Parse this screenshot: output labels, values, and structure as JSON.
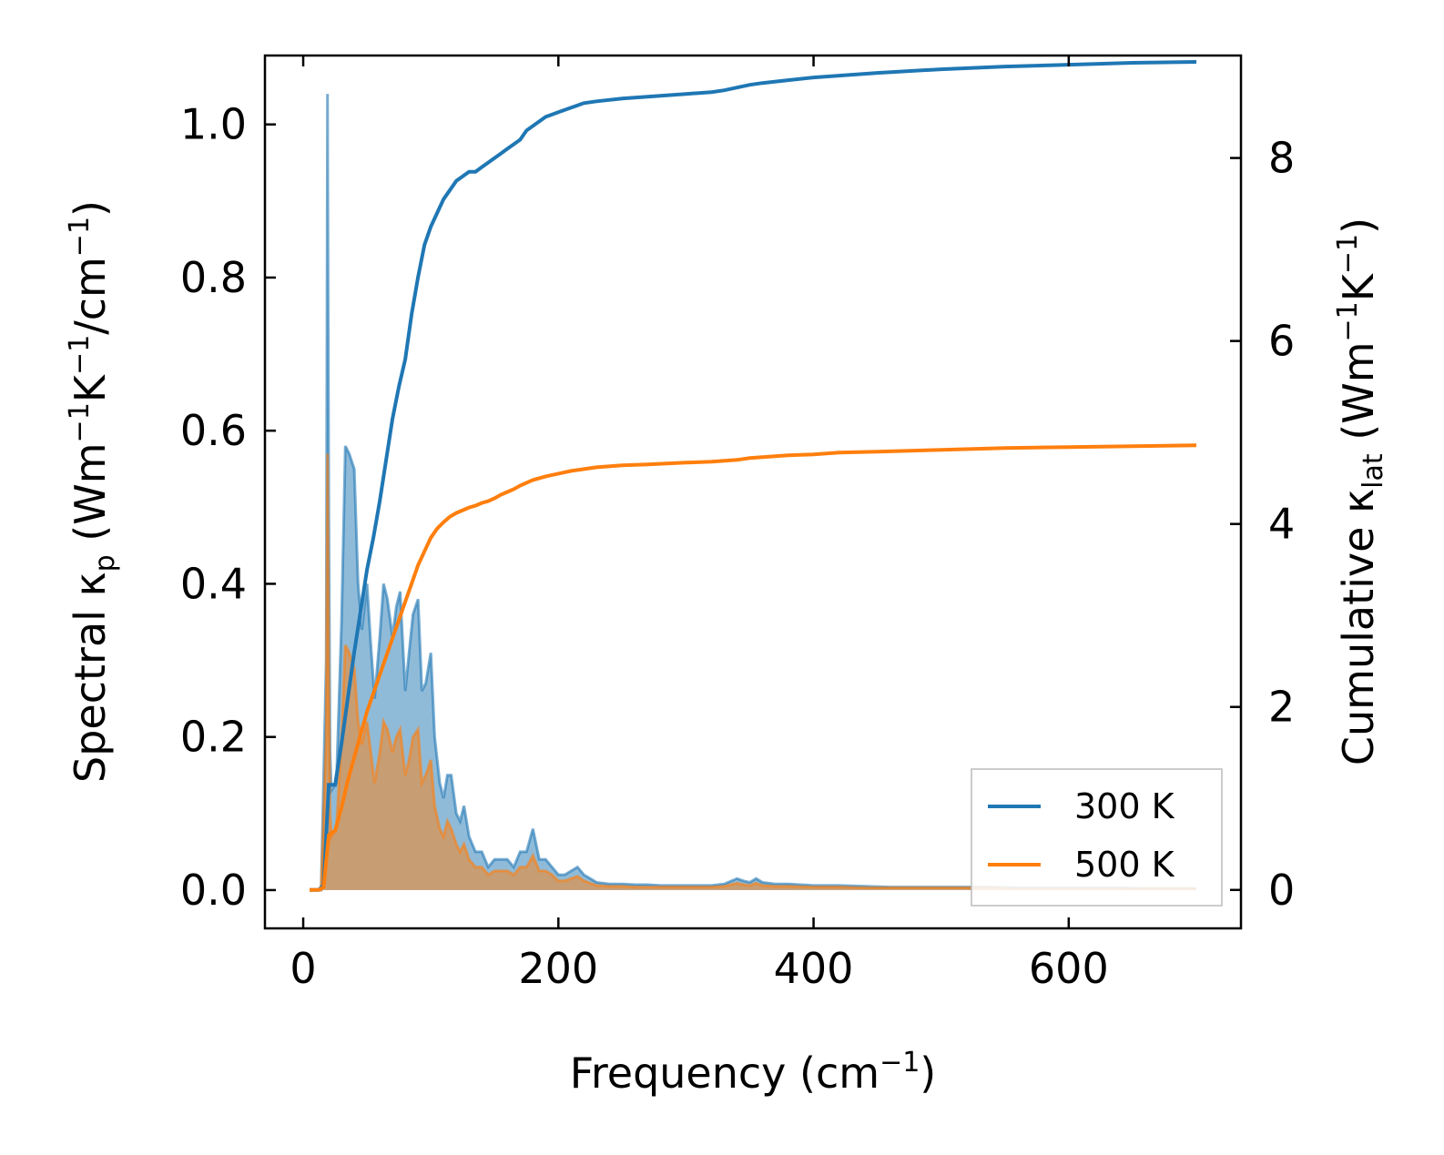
{
  "chart_data": {
    "type": "area",
    "title": "",
    "xlabel": "Frequency (cm",
    "xlabel_sup": "−1",
    "xlabel_close": ")",
    "ylabel_left": {
      "prefix": "Spectral κ",
      "sub": "p",
      "mid": " (Wm",
      "sup1": "−1",
      "k": "K",
      "sup2": "−1",
      "slash": "/cm",
      "sup3": "−1",
      "close": ")"
    },
    "ylabel_right": {
      "prefix": "Cumulative κ",
      "sub": "lat",
      "mid": " (Wm",
      "sup1": "−1",
      "k": "K",
      "sup2": "−1",
      "close": ")"
    },
    "xlim": [
      -30,
      735
    ],
    "ylim_left": [
      -0.05,
      1.09
    ],
    "ylim_right": [
      -0.42,
      9.12
    ],
    "xticks": [
      0,
      200,
      400,
      600
    ],
    "xtick_labels": [
      "0",
      "200",
      "400",
      "600"
    ],
    "yticks_left": [
      0.0,
      0.2,
      0.4,
      0.6,
      0.8,
      1.0
    ],
    "ytick_labels_left": [
      "0.0",
      "0.2",
      "0.4",
      "0.6",
      "0.8",
      "1.0"
    ],
    "yticks_right": [
      0,
      2,
      4,
      6,
      8
    ],
    "ytick_labels_right": [
      "0",
      "2",
      "4",
      "6",
      "8"
    ],
    "legend_position": "lower-right",
    "colors": {
      "300K": "#1f77b4",
      "500K": "#ff7f0e"
    },
    "series": [
      {
        "name": "300 K",
        "axis": "left",
        "kind": "spectral-fill",
        "x": [
          5,
          14,
          18,
          19,
          20,
          21,
          22,
          26,
          30,
          33,
          36,
          40,
          43,
          46,
          50,
          53,
          56,
          60,
          63,
          66,
          70,
          73,
          76,
          80,
          83,
          86,
          90,
          93,
          96,
          100,
          103,
          107,
          110,
          113,
          116,
          120,
          123,
          126,
          130,
          135,
          140,
          145,
          150,
          155,
          160,
          165,
          170,
          175,
          180,
          185,
          190,
          195,
          200,
          205,
          210,
          215,
          220,
          225,
          230,
          240,
          250,
          260,
          270,
          280,
          290,
          300,
          320,
          330,
          340,
          345,
          350,
          355,
          360,
          370,
          380,
          400,
          420,
          440,
          460,
          480,
          500,
          520,
          540,
          560,
          580,
          600,
          620,
          640,
          660,
          680,
          700
        ],
        "values": [
          0,
          0,
          0.3,
          1.04,
          0.5,
          0.18,
          0.13,
          0.14,
          0.35,
          0.58,
          0.57,
          0.55,
          0.4,
          0.34,
          0.4,
          0.32,
          0.25,
          0.33,
          0.4,
          0.38,
          0.33,
          0.37,
          0.39,
          0.26,
          0.31,
          0.36,
          0.38,
          0.26,
          0.27,
          0.31,
          0.2,
          0.14,
          0.12,
          0.15,
          0.15,
          0.1,
          0.09,
          0.11,
          0.07,
          0.05,
          0.05,
          0.03,
          0.04,
          0.04,
          0.04,
          0.03,
          0.05,
          0.05,
          0.08,
          0.04,
          0.04,
          0.03,
          0.02,
          0.02,
          0.025,
          0.03,
          0.02,
          0.015,
          0.01,
          0.008,
          0.008,
          0.007,
          0.007,
          0.006,
          0.006,
          0.006,
          0.006,
          0.008,
          0.015,
          0.012,
          0.01,
          0.015,
          0.01,
          0.008,
          0.008,
          0.006,
          0.006,
          0.005,
          0.004,
          0.004,
          0.004,
          0.004,
          0.004,
          0.003,
          0.003,
          0.003,
          0.003,
          0.003,
          0.002,
          0.002,
          0.002
        ]
      },
      {
        "name": "500 K",
        "axis": "left",
        "kind": "spectral-fill",
        "x": [
          5,
          14,
          18,
          19,
          20,
          21,
          22,
          26,
          30,
          33,
          36,
          40,
          43,
          46,
          50,
          53,
          56,
          60,
          63,
          66,
          70,
          73,
          76,
          80,
          83,
          86,
          90,
          93,
          96,
          100,
          103,
          107,
          110,
          113,
          116,
          120,
          123,
          126,
          130,
          135,
          140,
          145,
          150,
          155,
          160,
          165,
          170,
          175,
          180,
          185,
          190,
          195,
          200,
          205,
          210,
          215,
          220,
          225,
          230,
          240,
          250,
          260,
          270,
          280,
          290,
          300,
          320,
          330,
          340,
          345,
          350,
          355,
          360,
          370,
          380,
          400,
          420,
          440,
          460,
          480,
          500,
          520,
          540,
          560,
          580,
          600,
          620,
          640,
          660,
          680,
          700
        ],
        "values": [
          0,
          0,
          0.2,
          0.57,
          0.28,
          0.1,
          0.07,
          0.08,
          0.2,
          0.32,
          0.31,
          0.29,
          0.22,
          0.19,
          0.22,
          0.18,
          0.14,
          0.18,
          0.22,
          0.21,
          0.18,
          0.2,
          0.21,
          0.15,
          0.17,
          0.2,
          0.21,
          0.14,
          0.15,
          0.17,
          0.11,
          0.08,
          0.07,
          0.09,
          0.08,
          0.06,
          0.05,
          0.06,
          0.04,
          0.03,
          0.03,
          0.02,
          0.025,
          0.025,
          0.025,
          0.02,
          0.03,
          0.03,
          0.045,
          0.025,
          0.025,
          0.02,
          0.012,
          0.012,
          0.015,
          0.018,
          0.012,
          0.009,
          0.006,
          0.005,
          0.005,
          0.004,
          0.004,
          0.004,
          0.004,
          0.004,
          0.004,
          0.005,
          0.009,
          0.007,
          0.006,
          0.009,
          0.006,
          0.005,
          0.005,
          0.004,
          0.004,
          0.003,
          0.003,
          0.003,
          0.003,
          0.003,
          0.003,
          0.002,
          0.002,
          0.002,
          0.002,
          0.002,
          0.002,
          0.002,
          0.002
        ]
      },
      {
        "name": "300 K",
        "axis": "right",
        "kind": "cumulative-line",
        "x": [
          5,
          12,
          16,
          20,
          25,
          30,
          35,
          40,
          45,
          50,
          55,
          60,
          65,
          70,
          75,
          80,
          85,
          90,
          95,
          100,
          105,
          110,
          115,
          120,
          125,
          130,
          135,
          140,
          145,
          150,
          155,
          160,
          165,
          170,
          175,
          180,
          185,
          190,
          200,
          210,
          220,
          230,
          250,
          270,
          300,
          320,
          330,
          340,
          350,
          360,
          380,
          400,
          420,
          450,
          500,
          550,
          600,
          650,
          700
        ],
        "values": [
          0,
          0,
          0.05,
          1.15,
          1.15,
          1.6,
          2.1,
          2.6,
          3.05,
          3.5,
          3.85,
          4.25,
          4.7,
          5.15,
          5.5,
          5.8,
          6.3,
          6.7,
          7.05,
          7.25,
          7.4,
          7.55,
          7.65,
          7.75,
          7.8,
          7.85,
          7.85,
          7.9,
          7.95,
          8.0,
          8.05,
          8.1,
          8.15,
          8.2,
          8.3,
          8.35,
          8.4,
          8.45,
          8.5,
          8.55,
          8.6,
          8.62,
          8.65,
          8.67,
          8.7,
          8.72,
          8.74,
          8.77,
          8.8,
          8.82,
          8.85,
          8.88,
          8.9,
          8.93,
          8.97,
          9.0,
          9.02,
          9.04,
          9.05
        ]
      },
      {
        "name": "500 K",
        "axis": "right",
        "kind": "cumulative-line",
        "x": [
          5,
          12,
          16,
          20,
          25,
          30,
          35,
          40,
          45,
          50,
          55,
          60,
          65,
          70,
          75,
          80,
          85,
          90,
          95,
          100,
          105,
          110,
          115,
          120,
          125,
          130,
          135,
          140,
          145,
          150,
          155,
          160,
          165,
          170,
          175,
          180,
          185,
          190,
          200,
          210,
          220,
          230,
          250,
          270,
          300,
          320,
          330,
          340,
          350,
          360,
          380,
          400,
          420,
          450,
          500,
          550,
          600,
          650,
          700
        ],
        "values": [
          0,
          0,
          0.03,
          0.6,
          0.65,
          0.9,
          1.2,
          1.45,
          1.7,
          1.95,
          2.15,
          2.35,
          2.55,
          2.75,
          2.95,
          3.15,
          3.35,
          3.55,
          3.7,
          3.85,
          3.95,
          4.02,
          4.08,
          4.12,
          4.15,
          4.18,
          4.2,
          4.23,
          4.25,
          4.28,
          4.32,
          4.35,
          4.38,
          4.42,
          4.45,
          4.48,
          4.5,
          4.52,
          4.55,
          4.58,
          4.6,
          4.62,
          4.64,
          4.65,
          4.67,
          4.68,
          4.69,
          4.7,
          4.72,
          4.73,
          4.75,
          4.76,
          4.78,
          4.79,
          4.81,
          4.83,
          4.84,
          4.85,
          4.86
        ]
      }
    ],
    "legend": [
      {
        "label": "300 K",
        "color": "#1f77b4"
      },
      {
        "label": "500 K",
        "color": "#ff7f0e"
      }
    ]
  }
}
